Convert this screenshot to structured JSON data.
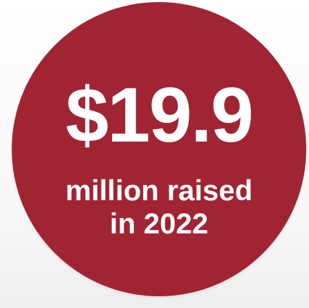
{
  "stat": {
    "amount": "$19.9",
    "caption_line1": "million raised",
    "caption_line2": "in 2022"
  },
  "colors": {
    "circle": "#a12433",
    "text": "#ffffff",
    "background": "#f7f7f7"
  }
}
